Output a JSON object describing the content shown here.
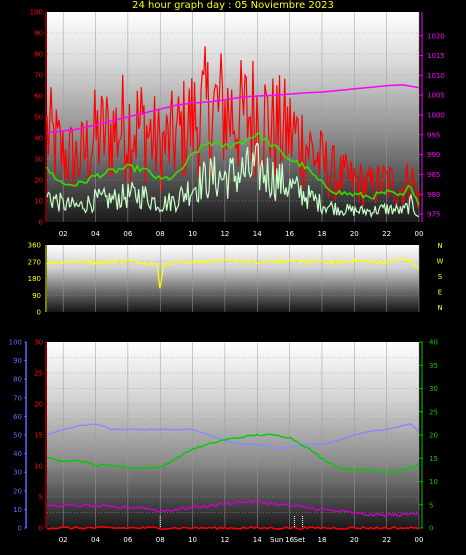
{
  "title": "24 hour graph day : 05 Noviembre 2023",
  "colors": {
    "wind_avg": "#33dd00",
    "wind_gust": "#ff0000",
    "wind_low": "#c8ffc8",
    "pressure": "#ff00ff",
    "direction": "#ffff00",
    "temp": "#8888ff",
    "humidity": "#00cc00",
    "dew": "#cc00cc",
    "rain": "#ff0000",
    "left_axis_wind": "#ff0000",
    "right_axis_pressure": "#ff00ff",
    "bottom_left_axis": "#6666ff",
    "bottom_mid_axis": "#ff0000",
    "bottom_right_axis": "#00cc00"
  },
  "compass_labels": [
    "N",
    "W",
    "S",
    "E",
    "N"
  ],
  "sun_label": "Sun",
  "set_label": "Set",
  "chart_data": [
    {
      "type": "line",
      "title": "24 hour graph day : 05 Noviembre 2023",
      "x_tick_labels": [
        "02",
        "04",
        "06",
        "08",
        "10",
        "12",
        "14",
        "16",
        "18",
        "20",
        "22",
        "00"
      ],
      "x_hours": [
        1,
        24
      ],
      "y_left_ticks": [
        "0",
        "10",
        "20",
        "30",
        "40",
        "50",
        "60",
        "70",
        "80",
        "90",
        "100"
      ],
      "y_left_range": [
        0,
        100
      ],
      "y_right_ticks": [
        "975",
        "980",
        "985",
        "990",
        "995",
        "1000",
        "1005",
        "1010",
        "1015",
        "1020"
      ],
      "y_right_range": [
        973,
        1026
      ],
      "series": [
        {
          "key": "wind_gust",
          "color_key": "wind_gust",
          "style": "spiky",
          "axis": "left",
          "x": [
            1,
            2,
            3,
            4,
            5,
            6,
            7,
            8,
            9,
            10,
            11,
            12,
            13,
            14,
            15,
            16,
            17,
            18,
            19,
            20,
            21,
            22,
            23,
            23.5,
            24
          ],
          "y": [
            40,
            30,
            28,
            38,
            40,
            44,
            42,
            33,
            38,
            45,
            50,
            50,
            46,
            50,
            42,
            40,
            35,
            26,
            20,
            18,
            16,
            18,
            15,
            20,
            10
          ]
        },
        {
          "key": "wind_avg",
          "color_key": "wind_avg",
          "style": "line",
          "axis": "left",
          "x": [
            1,
            2,
            3,
            4,
            5,
            6,
            7,
            8,
            9,
            10,
            11,
            12,
            13,
            14,
            15,
            16,
            17,
            18,
            19,
            20,
            21,
            22,
            23,
            23.5,
            24
          ],
          "y": [
            25,
            18,
            18,
            22,
            24,
            26,
            25,
            20,
            22,
            32,
            38,
            36,
            38,
            42,
            36,
            30,
            26,
            18,
            14,
            13,
            12,
            14,
            12,
            18,
            8
          ]
        },
        {
          "key": "wind_low",
          "color_key": "wind_low",
          "style": "spiky",
          "axis": "left",
          "x": [
            1,
            2,
            3,
            4,
            5,
            6,
            7,
            8,
            9,
            10,
            11,
            12,
            13,
            14,
            15,
            16,
            17,
            18,
            19,
            20,
            21,
            22,
            23,
            23.5,
            24
          ],
          "y": [
            12,
            8,
            7,
            10,
            10,
            12,
            12,
            8,
            10,
            16,
            20,
            20,
            22,
            24,
            20,
            16,
            12,
            8,
            6,
            5,
            5,
            6,
            5,
            8,
            3
          ]
        },
        {
          "key": "pressure",
          "color_key": "pressure",
          "style": "line",
          "axis": "right",
          "x": [
            1,
            2,
            3,
            4,
            5,
            6,
            7,
            8,
            9,
            10,
            11,
            12,
            13,
            14,
            15,
            16,
            17,
            18,
            19,
            20,
            21,
            22,
            23,
            24
          ],
          "y": [
            995.5,
            996,
            996.5,
            997.5,
            998.5,
            999.5,
            1000.5,
            1001.5,
            1002.5,
            1003,
            1003.3,
            1003.8,
            1004.5,
            1004.8,
            1005,
            1005.3,
            1005.6,
            1005.8,
            1006.2,
            1006.6,
            1007,
            1007.4,
            1007.6,
            1006.9
          ]
        }
      ]
    },
    {
      "type": "line",
      "x_tick_labels": [],
      "y_left_ticks": [
        "0",
        "90",
        "180",
        "270",
        "360"
      ],
      "y_left_range": [
        0,
        360
      ],
      "series": [
        {
          "key": "direction",
          "color_key": "direction",
          "style": "noisy",
          "axis": "left",
          "x": [
            1,
            2,
            3,
            4,
            5,
            6,
            7,
            7.8,
            8,
            8.2,
            9,
            10,
            11,
            12,
            13,
            14,
            15,
            16,
            17,
            18,
            19,
            20,
            21,
            22,
            23,
            23.5,
            24
          ],
          "y": [
            265,
            270,
            272,
            268,
            270,
            275,
            268,
            255,
            120,
            255,
            270,
            268,
            272,
            276,
            272,
            270,
            274,
            270,
            272,
            270,
            268,
            275,
            270,
            268,
            285,
            272,
            230
          ]
        }
      ]
    },
    {
      "type": "line",
      "x_tick_labels": [
        "02",
        "04",
        "06",
        "08",
        "10",
        "12",
        "14",
        "16",
        "18",
        "20",
        "22",
        "00"
      ],
      "y_left_ticks": [
        "0",
        "10",
        "20",
        "30",
        "40",
        "50",
        "60",
        "70",
        "80",
        "90",
        "100"
      ],
      "y_left_range": [
        0,
        100
      ],
      "y_mid_ticks": [
        "0",
        "5",
        "10",
        "15",
        "20",
        "25",
        "30"
      ],
      "y_mid_range": [
        0,
        30
      ],
      "y_right_ticks": [
        "0",
        "5",
        "10",
        "15",
        "20",
        "25",
        "30",
        "35",
        "40"
      ],
      "y_right_range": [
        0,
        40
      ],
      "series": [
        {
          "key": "temp",
          "color_key": "temp",
          "style": "line",
          "axis": "left",
          "x": [
            1,
            2,
            3,
            4,
            5,
            6,
            7,
            8,
            9,
            10,
            11,
            12,
            13,
            14,
            15,
            16,
            17,
            18,
            19,
            20,
            21,
            22,
            23,
            23.5,
            24
          ],
          "y": [
            50,
            53,
            55,
            56,
            53,
            53,
            53,
            53,
            53,
            53,
            50,
            47,
            45,
            45,
            43,
            43,
            45,
            45,
            47,
            50,
            52,
            53,
            55,
            56,
            52
          ]
        },
        {
          "key": "humidity",
          "color_key": "humidity",
          "style": "line",
          "axis": "right",
          "x": [
            1,
            2,
            3,
            4,
            5,
            6,
            7,
            8,
            9,
            10,
            11,
            12,
            13,
            14,
            15,
            16,
            17,
            18,
            19,
            20,
            21,
            22,
            23,
            24
          ],
          "y": [
            15,
            14.5,
            14.5,
            13.5,
            13.5,
            13,
            13,
            13,
            15,
            17,
            18,
            19,
            19.5,
            20,
            20,
            19.5,
            17.5,
            15,
            13,
            12.5,
            12.5,
            12,
            12.5,
            13.5
          ]
        },
        {
          "key": "dew",
          "color_key": "dew",
          "style": "noisy",
          "axis": "left",
          "x": [
            1,
            2,
            3,
            4,
            5,
            6,
            7,
            8,
            9,
            10,
            11,
            12,
            13,
            14,
            15,
            16,
            17,
            18,
            19,
            20,
            21,
            22,
            23,
            24
          ],
          "y": [
            12,
            12,
            12,
            12,
            11,
            11,
            11,
            9,
            10,
            11,
            12,
            13,
            14,
            14,
            13,
            12,
            11,
            10,
            9,
            8,
            7,
            7,
            7,
            8
          ]
        },
        {
          "key": "rain",
          "color_key": "rain",
          "style": "line",
          "axis": "mid",
          "x": [
            1,
            24
          ],
          "y": [
            0,
            0
          ]
        }
      ]
    }
  ]
}
